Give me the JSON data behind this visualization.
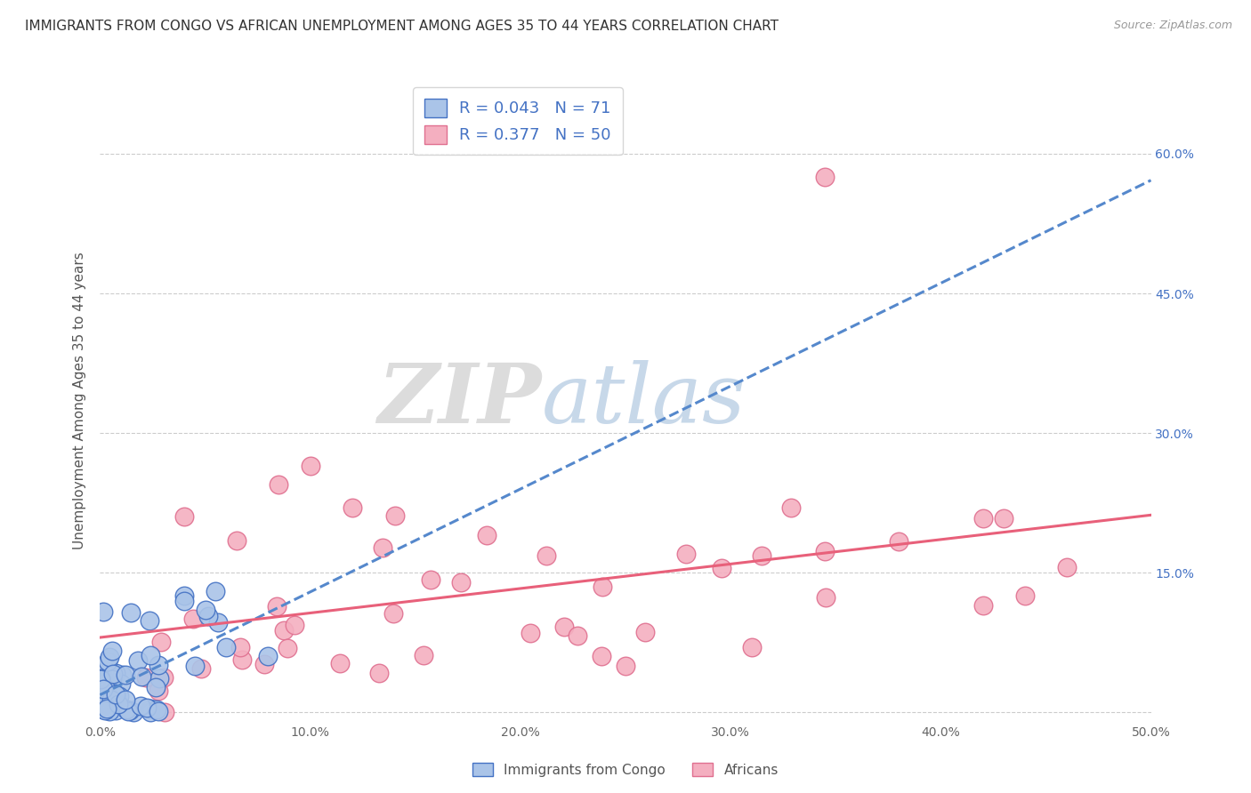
{
  "title": "IMMIGRANTS FROM CONGO VS AFRICAN UNEMPLOYMENT AMONG AGES 35 TO 44 YEARS CORRELATION CHART",
  "source": "Source: ZipAtlas.com",
  "ylabel": "Unemployment Among Ages 35 to 44 years",
  "xlim": [
    0.0,
    0.5
  ],
  "ylim": [
    -0.01,
    0.68
  ],
  "xticks": [
    0.0,
    0.1,
    0.2,
    0.3,
    0.4,
    0.5
  ],
  "xticklabels": [
    "0.0%",
    "10.0%",
    "20.0%",
    "30.0%",
    "40.0%",
    "50.0%"
  ],
  "yticks": [
    0.0,
    0.15,
    0.3,
    0.45,
    0.6
  ],
  "right_yticklabels": [
    "",
    "15.0%",
    "30.0%",
    "45.0%",
    "60.0%"
  ],
  "series1_label": "Immigrants from Congo",
  "series2_label": "Africans",
  "series1_color": "#aac4e8",
  "series2_color": "#f4afc0",
  "series1_edge": "#4472c4",
  "series2_edge": "#e07090",
  "trend1_color": "#5588cc",
  "trend2_color": "#e8607a",
  "R1": 0.043,
  "N1": 71,
  "R2": 0.377,
  "N2": 50,
  "background_color": "#ffffff",
  "grid_color": "#cccccc",
  "title_fontsize": 11,
  "axis_label_fontsize": 11,
  "tick_fontsize": 10,
  "watermark_zip_color": "#c8c8c8",
  "watermark_atlas_color": "#99b8d8"
}
